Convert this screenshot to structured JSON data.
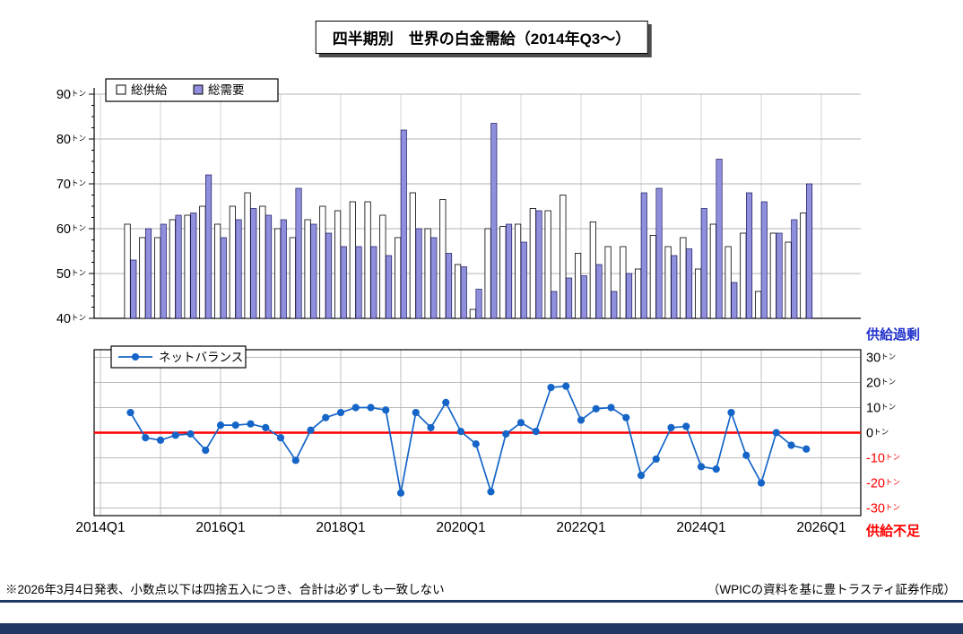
{
  "title": "四半期別　世界の白金需給（2014年Q3～）",
  "footnote_left": "※2026年3月4日発表、小数点以下は四捨五入につき、合計は必ずしも一致しない",
  "footnote_right": "（WPICの資料を基に豊トラスティ証券作成）",
  "labels": {
    "unit": "トン",
    "surplus": "供給過剰",
    "shortage": "供給不足"
  },
  "colors": {
    "supply_bar": "#ffffff",
    "demand_bar": "#8f8fdd",
    "bar_border": "#000000",
    "net_line": "#1565c8",
    "zero_line": "#ff0000",
    "negative_tick": "#ff0000",
    "surplus_label": "#2233cc",
    "shortage_label": "#ff0000",
    "grid": "#b3b3b3",
    "bottom_rule": "#1f3864"
  },
  "x_axis": {
    "tick_labels": [
      "2014Q1",
      "2016Q1",
      "2018Q1",
      "2020Q1",
      "2022Q1",
      "2024Q1",
      "2026Q1"
    ]
  },
  "chart_data": [
    {
      "type": "bar",
      "title": "四半期別　世界の白金需給（2014年Q3～）",
      "categories": [
        "2014Q3",
        "2014Q4",
        "2015Q1",
        "2015Q2",
        "2015Q3",
        "2015Q4",
        "2016Q1",
        "2016Q2",
        "2016Q3",
        "2016Q4",
        "2017Q1",
        "2017Q2",
        "2017Q3",
        "2017Q4",
        "2018Q1",
        "2018Q2",
        "2018Q3",
        "2018Q4",
        "2019Q1",
        "2019Q2",
        "2019Q3",
        "2019Q4",
        "2020Q1",
        "2020Q2",
        "2020Q3",
        "2020Q4",
        "2021Q1",
        "2021Q2",
        "2021Q3",
        "2021Q4",
        "2022Q1",
        "2022Q2",
        "2022Q3",
        "2022Q4",
        "2023Q1",
        "2023Q2",
        "2023Q3",
        "2023Q4",
        "2024Q1",
        "2024Q2",
        "2024Q3",
        "2024Q4",
        "2025Q1",
        "2025Q2",
        "2025Q3",
        "2025Q4"
      ],
      "series": [
        {
          "name": "総供給",
          "values": [
            61,
            58,
            58,
            62,
            63,
            65,
            61,
            65,
            68,
            65,
            60,
            58,
            62,
            65,
            64,
            66,
            66,
            63,
            58,
            68,
            60,
            66.5,
            52,
            42,
            60,
            60.5,
            61,
            64.5,
            64,
            67.5,
            54.5,
            61.5,
            56,
            56,
            51,
            58.5,
            56,
            58,
            51,
            61,
            56,
            59,
            46,
            59,
            57,
            63.5
          ]
        },
        {
          "name": "総需要",
          "values": [
            53,
            60,
            61,
            63,
            63.5,
            72,
            58,
            62,
            64.5,
            63,
            62,
            69,
            61,
            59,
            56,
            56,
            56,
            54,
            82,
            60,
            58,
            54.5,
            51.5,
            46.5,
            83.5,
            61,
            57,
            64,
            46,
            49,
            49.5,
            52,
            46,
            50,
            68,
            69,
            54,
            55.5,
            64.5,
            75.5,
            48,
            68,
            66,
            59,
            62,
            70
          ]
        }
      ],
      "ylabel": "トン",
      "ylim": [
        40,
        90
      ],
      "yticks": [
        40,
        50,
        60,
        70,
        80,
        90
      ],
      "legend_position": "top-left",
      "grid": true
    },
    {
      "type": "line",
      "categories": [
        "2014Q3",
        "2014Q4",
        "2015Q1",
        "2015Q2",
        "2015Q3",
        "2015Q4",
        "2016Q1",
        "2016Q2",
        "2016Q3",
        "2016Q4",
        "2017Q1",
        "2017Q2",
        "2017Q3",
        "2017Q4",
        "2018Q1",
        "2018Q2",
        "2018Q3",
        "2018Q4",
        "2019Q1",
        "2019Q2",
        "2019Q3",
        "2019Q4",
        "2020Q1",
        "2020Q2",
        "2020Q3",
        "2020Q4",
        "2021Q1",
        "2021Q2",
        "2021Q3",
        "2021Q4",
        "2022Q1",
        "2022Q2",
        "2022Q3",
        "2022Q4",
        "2023Q1",
        "2023Q2",
        "2023Q3",
        "2023Q4",
        "2024Q1",
        "2024Q2",
        "2024Q3",
        "2024Q4",
        "2025Q1",
        "2025Q2",
        "2025Q3",
        "2025Q4"
      ],
      "series": [
        {
          "name": "ネットバランス",
          "values": [
            8,
            -2,
            -3,
            -1,
            -0.5,
            -7,
            3,
            3,
            3.5,
            2,
            -2,
            -11,
            1,
            6,
            8,
            10,
            10,
            9,
            -24,
            8,
            2,
            12,
            0.5,
            -4.5,
            -23.5,
            -0.5,
            4,
            0.5,
            18,
            18.5,
            5,
            9.5,
            10,
            6,
            -17,
            -10.5,
            2,
            2.5,
            -13.5,
            -14.5,
            8,
            -9,
            -20,
            0,
            -5,
            -6.5
          ]
        }
      ],
      "ylabel": "トン",
      "ylim": [
        -33,
        33
      ],
      "yticks": [
        30,
        20,
        10,
        0,
        -10,
        -20,
        -30
      ],
      "zero_line": true,
      "legend_position": "top-left",
      "grid": true,
      "annotation_above": "供給過剰",
      "annotation_below": "供給不足"
    }
  ]
}
